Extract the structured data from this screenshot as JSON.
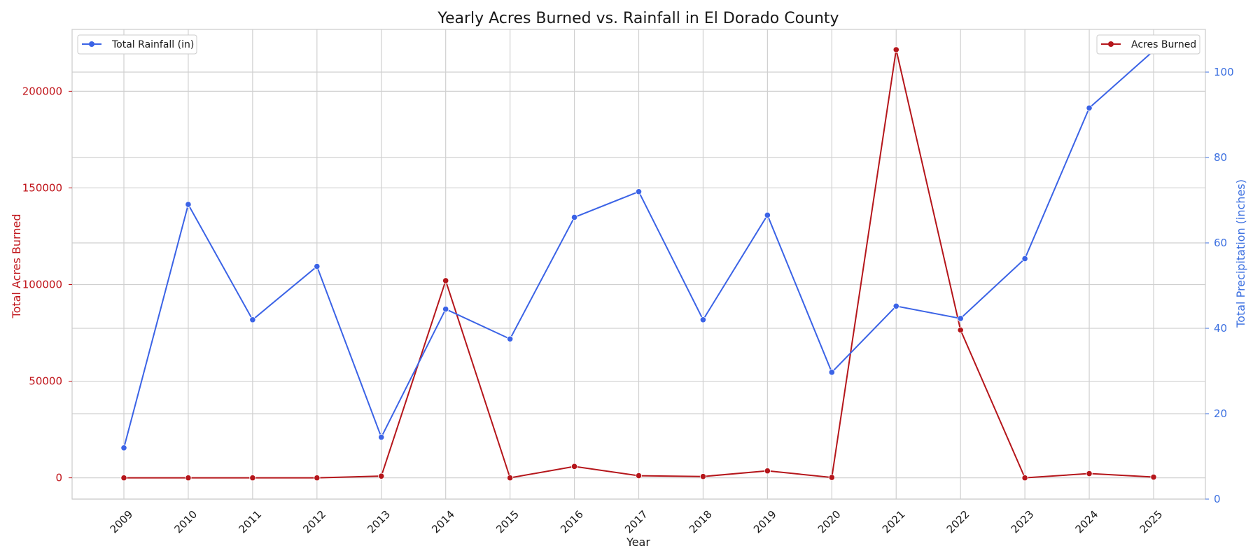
{
  "chart_data": {
    "type": "line",
    "title": "Yearly Acres Burned vs. Rainfall in El Dorado County",
    "xlabel": "Year",
    "ylabel_left": "Total Acres Burned",
    "ylabel_right": "Total Precipitation (inches)",
    "categories": [
      "2009",
      "2010",
      "2011",
      "2012",
      "2013",
      "2014",
      "2015",
      "2016",
      "2017",
      "2018",
      "2019",
      "2020",
      "2021",
      "2022",
      "2023",
      "2024",
      "2025"
    ],
    "left_axis": {
      "min": -11000,
      "max": 232000,
      "ticks": [
        0,
        50000,
        100000,
        150000,
        200000
      ],
      "color": "#c0141a"
    },
    "right_axis": {
      "min": 0,
      "max": 110,
      "ticks": [
        0,
        20,
        40,
        60,
        80,
        100
      ],
      "color": "#3b6fe0"
    },
    "grid": true,
    "series": [
      {
        "name": "Acres Burned",
        "axis": "left",
        "color": "#b5161b",
        "values": [
          0,
          0,
          0,
          0,
          900,
          102000,
          0,
          5900,
          1100,
          700,
          3600,
          200,
          221500,
          76500,
          0,
          2200,
          400
        ],
        "legend_position": "top-right"
      },
      {
        "name": "Total Rainfall (in)",
        "axis": "right",
        "color": "#3b63e6",
        "values": [
          12,
          69,
          42,
          54.5,
          14.5,
          44.5,
          37.5,
          66,
          72,
          42,
          66.5,
          29.7,
          45.2,
          42.3,
          56.3,
          91.6,
          105
        ],
        "legend_position": "top-left"
      }
    ]
  }
}
